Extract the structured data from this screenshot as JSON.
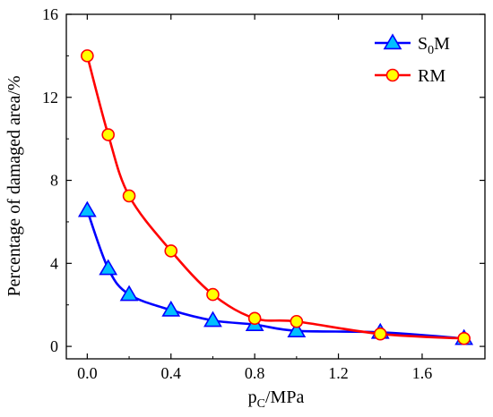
{
  "chart_data": {
    "type": "line",
    "title": "",
    "xlabel": {
      "main": "p",
      "sub": "C",
      "rest": "/MPa"
    },
    "ylabel": "Percentage of damaged area/%",
    "xlim": [
      -0.1,
      1.9
    ],
    "ylim": [
      -0.6,
      16
    ],
    "xticks": [
      0.0,
      0.4,
      0.8,
      1.2,
      1.6
    ],
    "xtick_labels": [
      "0.0",
      "0.4",
      "0.8",
      "1.2",
      "1.6"
    ],
    "yticks": [
      0,
      4,
      8,
      12,
      16
    ],
    "ytick_labels": [
      "0",
      "4",
      "8",
      "12",
      "16"
    ],
    "grid": false,
    "legend_position": "top-right",
    "series": [
      {
        "name": "S0M",
        "legend": {
          "main": "S",
          "sub": "0",
          "rest": "M"
        },
        "marker": "triangle",
        "line_color": "#0000ff",
        "marker_fill": "#00bfff",
        "x": [
          0.0,
          0.1,
          0.2,
          0.4,
          0.6,
          0.8,
          1.0,
          1.4,
          1.8
        ],
        "y": [
          6.55,
          3.75,
          2.5,
          1.75,
          1.25,
          1.05,
          0.75,
          0.68,
          0.38
        ]
      },
      {
        "name": "RM",
        "legend": {
          "main": "RM",
          "sub": "",
          "rest": ""
        },
        "marker": "circle",
        "line_color": "#ff0000",
        "marker_fill": "#ffff00",
        "x": [
          0.0,
          0.1,
          0.2,
          0.4,
          0.6,
          0.8,
          1.0,
          1.4,
          1.8
        ],
        "y": [
          14.0,
          10.2,
          7.25,
          4.6,
          2.5,
          1.35,
          1.2,
          0.6,
          0.38
        ]
      }
    ]
  }
}
